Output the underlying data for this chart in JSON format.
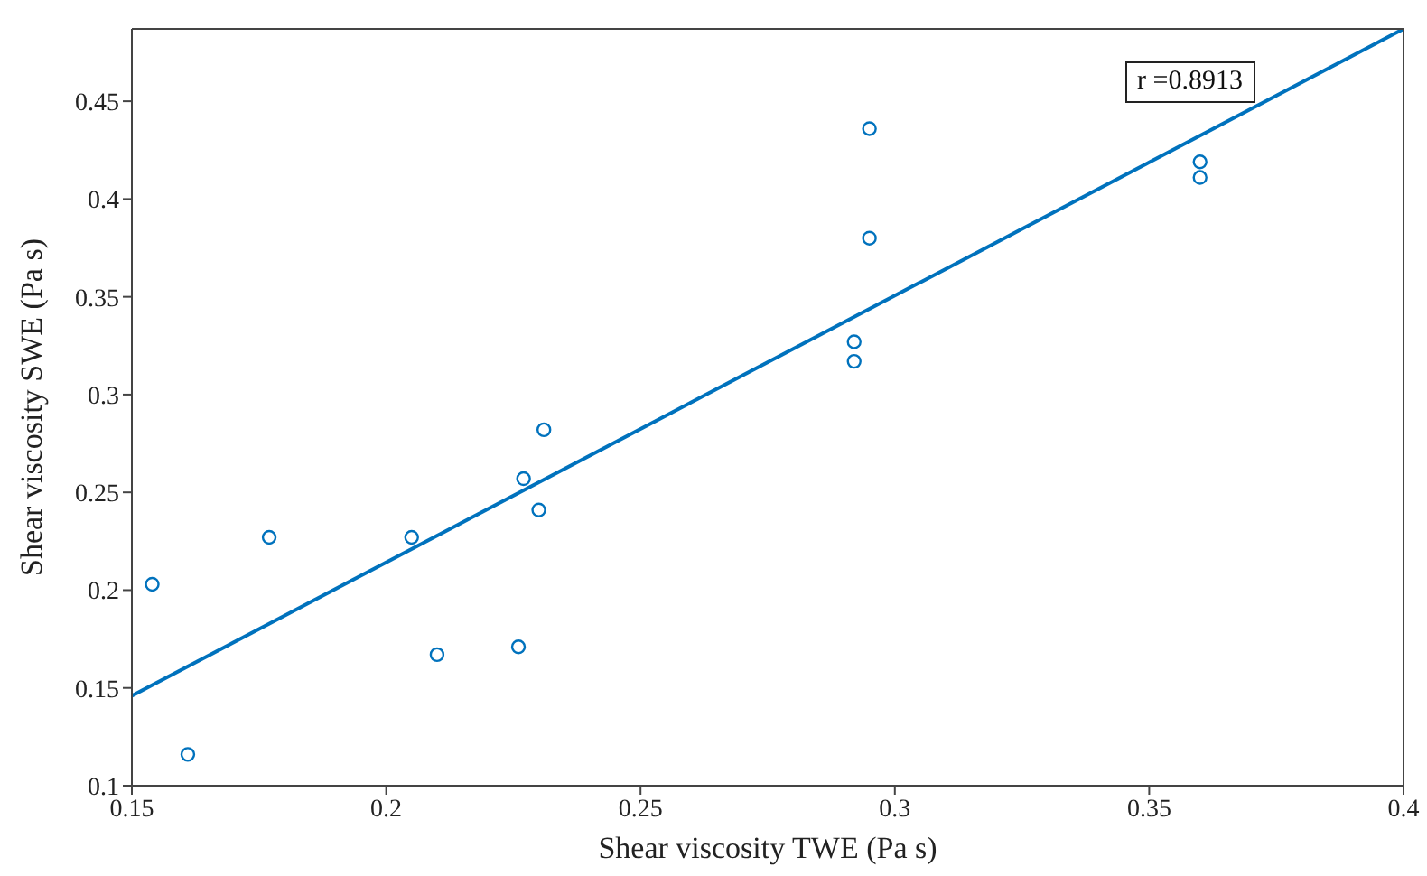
{
  "chart_data": {
    "type": "scatter",
    "xlabel": "Shear viscosity TWE (Pa s)",
    "ylabel": "Shear viscosity SWE (Pa s)",
    "xlim": [
      0.15,
      0.4
    ],
    "xticks": [
      0.15,
      0.2,
      0.25,
      0.3,
      0.35,
      0.4
    ],
    "ylim": [
      0.1,
      0.487
    ],
    "yticks": [
      0.1,
      0.15,
      0.2,
      0.25,
      0.3,
      0.35,
      0.4,
      0.45
    ],
    "marker": "circle",
    "annotations": [
      "r =0.8913"
    ],
    "series": [
      {
        "color": "#0072bd",
        "x": [
          0.154,
          0.161,
          0.177,
          0.205,
          0.21,
          0.226,
          0.227,
          0.23,
          0.231,
          0.292,
          0.292,
          0.295,
          0.295,
          0.36,
          0.36
        ],
        "values": [
          0.203,
          0.116,
          0.227,
          0.227,
          0.167,
          0.171,
          0.257,
          0.241,
          0.282,
          0.327,
          0.317,
          0.38,
          0.436,
          0.419,
          0.411
        ]
      },
      {
        "type": "line",
        "color": "#0072bd",
        "line_style": "solid",
        "marker": "none",
        "x": [
          0.15,
          0.4
        ],
        "values": [
          0.146,
          0.487
        ]
      }
    ]
  }
}
